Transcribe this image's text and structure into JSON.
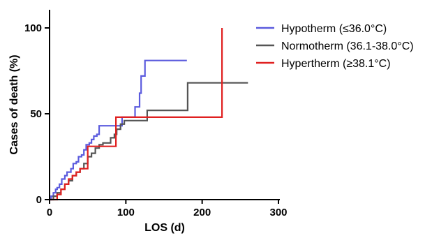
{
  "chart_data": {
    "type": "line",
    "xlabel": "LOS (d)",
    "ylabel": "Cases of death (%)",
    "xlim": [
      0,
      300
    ],
    "ylim": [
      0,
      110
    ],
    "xticks": [
      "0",
      "100",
      "200",
      "300"
    ],
    "yticks": [
      "0",
      "50",
      "100"
    ],
    "legend_position": "top-right",
    "grid": false,
    "series": [
      {
        "name": "Hypotherm (≤36.0°C)",
        "color": "#5b5bde",
        "points": [
          [
            0,
            0
          ],
          [
            2,
            2
          ],
          [
            5,
            4
          ],
          [
            8,
            6
          ],
          [
            10,
            7
          ],
          [
            13,
            9
          ],
          [
            16,
            12
          ],
          [
            20,
            14
          ],
          [
            23,
            16
          ],
          [
            28,
            18
          ],
          [
            31,
            21
          ],
          [
            35,
            22
          ],
          [
            38,
            25
          ],
          [
            42,
            26
          ],
          [
            45,
            29
          ],
          [
            48,
            32
          ],
          [
            52,
            33
          ],
          [
            55,
            35
          ],
          [
            58,
            37
          ],
          [
            62,
            38
          ],
          [
            65,
            43
          ],
          [
            70,
            43
          ],
          [
            80,
            43
          ],
          [
            90,
            43
          ],
          [
            95,
            48
          ],
          [
            100,
            48
          ],
          [
            110,
            48
          ],
          [
            112,
            54
          ],
          [
            115,
            54
          ],
          [
            118,
            62
          ],
          [
            120,
            72
          ],
          [
            123,
            72
          ],
          [
            125,
            81
          ],
          [
            150,
            81
          ],
          [
            180,
            81
          ]
        ]
      },
      {
        "name": "Normotherm (36.1-38.0°C)",
        "color": "#555555",
        "points": [
          [
            0,
            0
          ],
          [
            5,
            2
          ],
          [
            10,
            4
          ],
          [
            15,
            6
          ],
          [
            20,
            9
          ],
          [
            25,
            11
          ],
          [
            30,
            14
          ],
          [
            35,
            16
          ],
          [
            40,
            18
          ],
          [
            45,
            21
          ],
          [
            50,
            25
          ],
          [
            55,
            27
          ],
          [
            60,
            30
          ],
          [
            65,
            32
          ],
          [
            70,
            33
          ],
          [
            75,
            33
          ],
          [
            80,
            36
          ],
          [
            85,
            38
          ],
          [
            88,
            41
          ],
          [
            93,
            44
          ],
          [
            98,
            46
          ],
          [
            103,
            46
          ],
          [
            110,
            46
          ],
          [
            120,
            46
          ],
          [
            128,
            52
          ],
          [
            150,
            52
          ],
          [
            180,
            52
          ],
          [
            181,
            68
          ],
          [
            230,
            68
          ],
          [
            260,
            68
          ]
        ]
      },
      {
        "name": "Hypertherm (≥38.1°C)",
        "color": "#e02020",
        "points": [
          [
            0,
            0
          ],
          [
            10,
            3
          ],
          [
            15,
            6
          ],
          [
            20,
            9
          ],
          [
            25,
            12
          ],
          [
            30,
            14
          ],
          [
            35,
            16
          ],
          [
            40,
            18
          ],
          [
            48,
            18
          ],
          [
            50,
            31
          ],
          [
            60,
            31
          ],
          [
            70,
            31
          ],
          [
            85,
            31
          ],
          [
            87,
            48
          ],
          [
            110,
            48
          ],
          [
            150,
            48
          ],
          [
            200,
            48
          ],
          [
            226,
            48
          ],
          [
            226,
            100
          ]
        ]
      }
    ]
  }
}
